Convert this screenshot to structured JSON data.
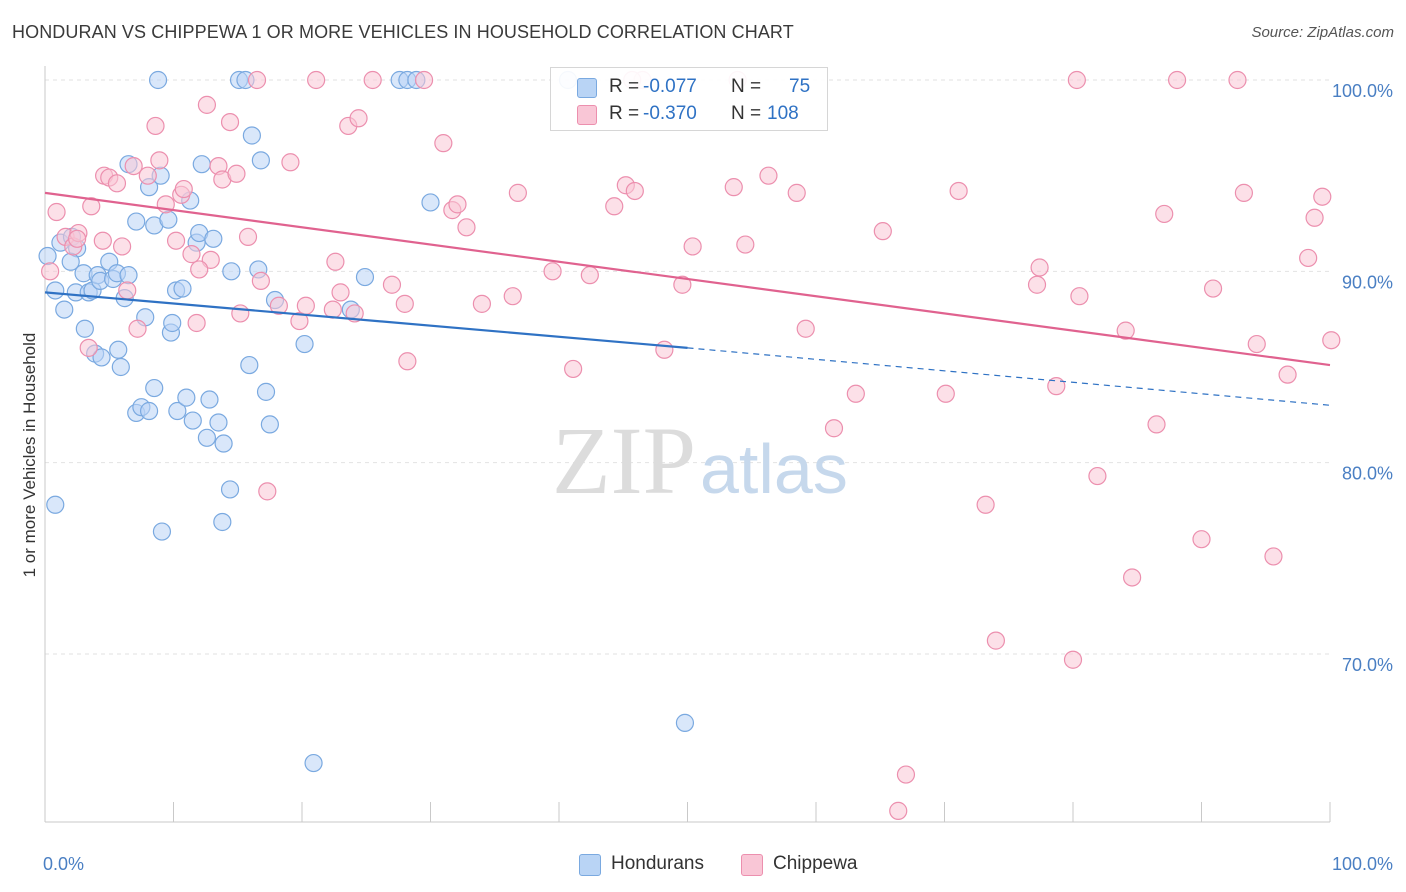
{
  "title": "HONDURAN VS CHIPPEWA 1 OR MORE VEHICLES IN HOUSEHOLD CORRELATION CHART",
  "source": "Source: ZipAtlas.com",
  "watermark": {
    "zip": "ZIP",
    "atlas": "atlas"
  },
  "stats": {
    "r_label": "R =",
    "n_label": "N =",
    "rows": [
      {
        "r": "-0.077",
        "n": "75",
        "fill": "#b9d4f5",
        "stroke": "#7aa9e0"
      },
      {
        "r": "-0.370",
        "n": "108",
        "fill": "#f9c6d6",
        "stroke": "#ec8fae"
      }
    ]
  },
  "legend": [
    {
      "label": "Hondurans",
      "fill": "#b9d4f5",
      "stroke": "#7aa9e0"
    },
    {
      "label": "Chippewa",
      "fill": "#f9c6d6",
      "stroke": "#ec8fae"
    }
  ],
  "chart_data": {
    "type": "scatter",
    "title": "HONDURAN VS CHIPPEWA 1 OR MORE VEHICLES IN HOUSEHOLD CORRELATION CHART",
    "ylabel": "1 or more Vehicles in Household",
    "xlabel": "",
    "xlim": [
      0,
      100
    ],
    "ylim": [
      60,
      101
    ],
    "x_tick_labels": [
      "0.0%",
      "100.0%"
    ],
    "y_ticks": [
      70,
      80,
      90,
      100
    ],
    "y_tick_labels": [
      "70.0%",
      "80.0%",
      "90.0%",
      "100.0%"
    ],
    "grid": true,
    "legend_position": "bottom-center",
    "series": [
      {
        "name": "Hondurans",
        "color": "#7aa9e0",
        "fill": "#b9d4f5",
        "trend": {
          "x": [
            0,
            50
          ],
          "y": [
            88.9,
            86.0
          ],
          "dashed_to": [
            100,
            83.0
          ],
          "color": "#2f72c4"
        },
        "points": [
          [
            0.2,
            90.8
          ],
          [
            0.8,
            89.0
          ],
          [
            1.5,
            88.0
          ],
          [
            1.2,
            91.5
          ],
          [
            2.1,
            91.8
          ],
          [
            2.5,
            91.2
          ],
          [
            2.4,
            88.9
          ],
          [
            3.0,
            89.9
          ],
          [
            3.4,
            88.9
          ],
          [
            3.1,
            87.0
          ],
          [
            3.7,
            89.0
          ],
          [
            4.1,
            89.8
          ],
          [
            4.3,
            89.5
          ],
          [
            3.9,
            85.7
          ],
          [
            4.4,
            85.5
          ],
          [
            5.0,
            90.5
          ],
          [
            5.3,
            89.6
          ],
          [
            5.6,
            89.9
          ],
          [
            5.7,
            85.9
          ],
          [
            5.9,
            85.0
          ],
          [
            6.2,
            88.6
          ],
          [
            6.5,
            89.8
          ],
          [
            6.5,
            95.6
          ],
          [
            7.1,
            92.6
          ],
          [
            7.1,
            82.6
          ],
          [
            7.5,
            82.9
          ],
          [
            7.8,
            87.6
          ],
          [
            8.1,
            94.4
          ],
          [
            8.1,
            82.7
          ],
          [
            8.5,
            92.4
          ],
          [
            8.5,
            83.9
          ],
          [
            8.8,
            100.0
          ],
          [
            9.0,
            95.0
          ],
          [
            9.6,
            92.7
          ],
          [
            9.8,
            86.8
          ],
          [
            9.9,
            87.3
          ],
          [
            10.2,
            89.0
          ],
          [
            10.3,
            82.7
          ],
          [
            10.7,
            89.1
          ],
          [
            11.0,
            83.4
          ],
          [
            11.3,
            93.7
          ],
          [
            11.5,
            82.2
          ],
          [
            11.8,
            91.5
          ],
          [
            12.0,
            92.0
          ],
          [
            12.2,
            95.6
          ],
          [
            12.6,
            81.3
          ],
          [
            12.8,
            83.3
          ],
          [
            13.1,
            91.7
          ],
          [
            13.5,
            82.1
          ],
          [
            13.8,
            76.9
          ],
          [
            13.9,
            81.0
          ],
          [
            14.4,
            78.6
          ],
          [
            15.1,
            100.0
          ],
          [
            15.6,
            100.0
          ],
          [
            15.9,
            85.1
          ],
          [
            16.1,
            97.1
          ],
          [
            16.6,
            90.1
          ],
          [
            16.8,
            95.8
          ],
          [
            17.2,
            83.7
          ],
          [
            17.5,
            82.0
          ],
          [
            17.9,
            88.5
          ],
          [
            20.2,
            86.2
          ],
          [
            20.9,
            64.3
          ],
          [
            23.8,
            88.0
          ],
          [
            24.9,
            89.7
          ],
          [
            27.6,
            100.0
          ],
          [
            28.2,
            100.0
          ],
          [
            28.9,
            100.0
          ],
          [
            30.0,
            93.6
          ],
          [
            40.7,
            100.0
          ],
          [
            49.8,
            66.4
          ],
          [
            0.8,
            77.8
          ],
          [
            9.1,
            76.4
          ],
          [
            14.5,
            90.0
          ],
          [
            2.0,
            90.5
          ]
        ]
      },
      {
        "name": "Chippewa",
        "color": "#ec8fae",
        "fill": "#f9c6d6",
        "trend": {
          "x": [
            0,
            100
          ],
          "y": [
            94.1,
            85.1
          ],
          "color": "#e0628f"
        },
        "points": [
          [
            0.4,
            90.0
          ],
          [
            0.9,
            93.1
          ],
          [
            1.6,
            91.8
          ],
          [
            2.2,
            91.3
          ],
          [
            2.6,
            92.0
          ],
          [
            3.4,
            86.0
          ],
          [
            3.6,
            93.4
          ],
          [
            4.5,
            91.6
          ],
          [
            4.6,
            95.0
          ],
          [
            5.0,
            94.9
          ],
          [
            5.6,
            94.6
          ],
          [
            6.4,
            89.0
          ],
          [
            6.9,
            95.5
          ],
          [
            7.2,
            87.0
          ],
          [
            8.0,
            95.0
          ],
          [
            8.6,
            97.6
          ],
          [
            8.9,
            95.8
          ],
          [
            9.4,
            93.5
          ],
          [
            10.2,
            91.6
          ],
          [
            10.6,
            94.0
          ],
          [
            10.8,
            94.3
          ],
          [
            11.4,
            90.9
          ],
          [
            11.8,
            87.3
          ],
          [
            12.6,
            98.7
          ],
          [
            12.9,
            90.6
          ],
          [
            13.5,
            95.5
          ],
          [
            13.8,
            94.8
          ],
          [
            14.4,
            97.8
          ],
          [
            14.9,
            95.1
          ],
          [
            15.2,
            87.8
          ],
          [
            15.8,
            91.8
          ],
          [
            16.5,
            100.0
          ],
          [
            16.8,
            89.5
          ],
          [
            17.3,
            78.5
          ],
          [
            18.2,
            88.2
          ],
          [
            19.1,
            95.7
          ],
          [
            19.8,
            87.4
          ],
          [
            20.3,
            88.2
          ],
          [
            21.1,
            100.0
          ],
          [
            22.6,
            90.5
          ],
          [
            23.0,
            88.9
          ],
          [
            23.6,
            97.6
          ],
          [
            24.1,
            87.8
          ],
          [
            24.4,
            98.0
          ],
          [
            25.5,
            100.0
          ],
          [
            27.0,
            89.3
          ],
          [
            28.0,
            88.3
          ],
          [
            28.2,
            85.3
          ],
          [
            29.5,
            100.0
          ],
          [
            31.0,
            96.7
          ],
          [
            31.7,
            93.2
          ],
          [
            32.1,
            93.5
          ],
          [
            32.8,
            92.3
          ],
          [
            34.0,
            88.3
          ],
          [
            36.8,
            94.1
          ],
          [
            39.5,
            90.0
          ],
          [
            41.1,
            84.9
          ],
          [
            42.4,
            89.8
          ],
          [
            44.3,
            93.4
          ],
          [
            45.2,
            94.5
          ],
          [
            45.9,
            94.2
          ],
          [
            46.5,
            100.0
          ],
          [
            48.2,
            85.9
          ],
          [
            49.6,
            89.3
          ],
          [
            50.4,
            91.3
          ],
          [
            53.6,
            94.4
          ],
          [
            54.5,
            91.4
          ],
          [
            56.3,
            95.0
          ],
          [
            58.5,
            94.1
          ],
          [
            59.2,
            87.0
          ],
          [
            61.4,
            81.8
          ],
          [
            63.1,
            83.6
          ],
          [
            65.2,
            92.1
          ],
          [
            66.4,
            61.8
          ],
          [
            67.0,
            63.7
          ],
          [
            70.1,
            83.6
          ],
          [
            71.1,
            94.2
          ],
          [
            73.2,
            77.8
          ],
          [
            74.0,
            70.7
          ],
          [
            77.2,
            89.3
          ],
          [
            77.4,
            90.2
          ],
          [
            78.7,
            84.0
          ],
          [
            80.0,
            69.7
          ],
          [
            80.5,
            88.7
          ],
          [
            81.9,
            79.3
          ],
          [
            84.1,
            86.9
          ],
          [
            84.6,
            74.0
          ],
          [
            86.5,
            82.0
          ],
          [
            87.1,
            93.0
          ],
          [
            88.1,
            100.0
          ],
          [
            90.0,
            76.0
          ],
          [
            90.9,
            89.1
          ],
          [
            92.8,
            100.0
          ],
          [
            93.3,
            94.1
          ],
          [
            94.3,
            86.2
          ],
          [
            95.6,
            75.1
          ],
          [
            96.7,
            84.6
          ],
          [
            98.3,
            90.7
          ],
          [
            98.8,
            92.8
          ],
          [
            99.4,
            93.9
          ],
          [
            100.1,
            86.4
          ],
          [
            2.5,
            91.7
          ],
          [
            6.0,
            91.3
          ],
          [
            12.0,
            90.1
          ],
          [
            22.4,
            88.0
          ],
          [
            36.4,
            88.7
          ],
          [
            45.7,
            100.0
          ],
          [
            80.3,
            100.0
          ],
          [
            53.9,
            100.0
          ]
        ]
      }
    ]
  }
}
